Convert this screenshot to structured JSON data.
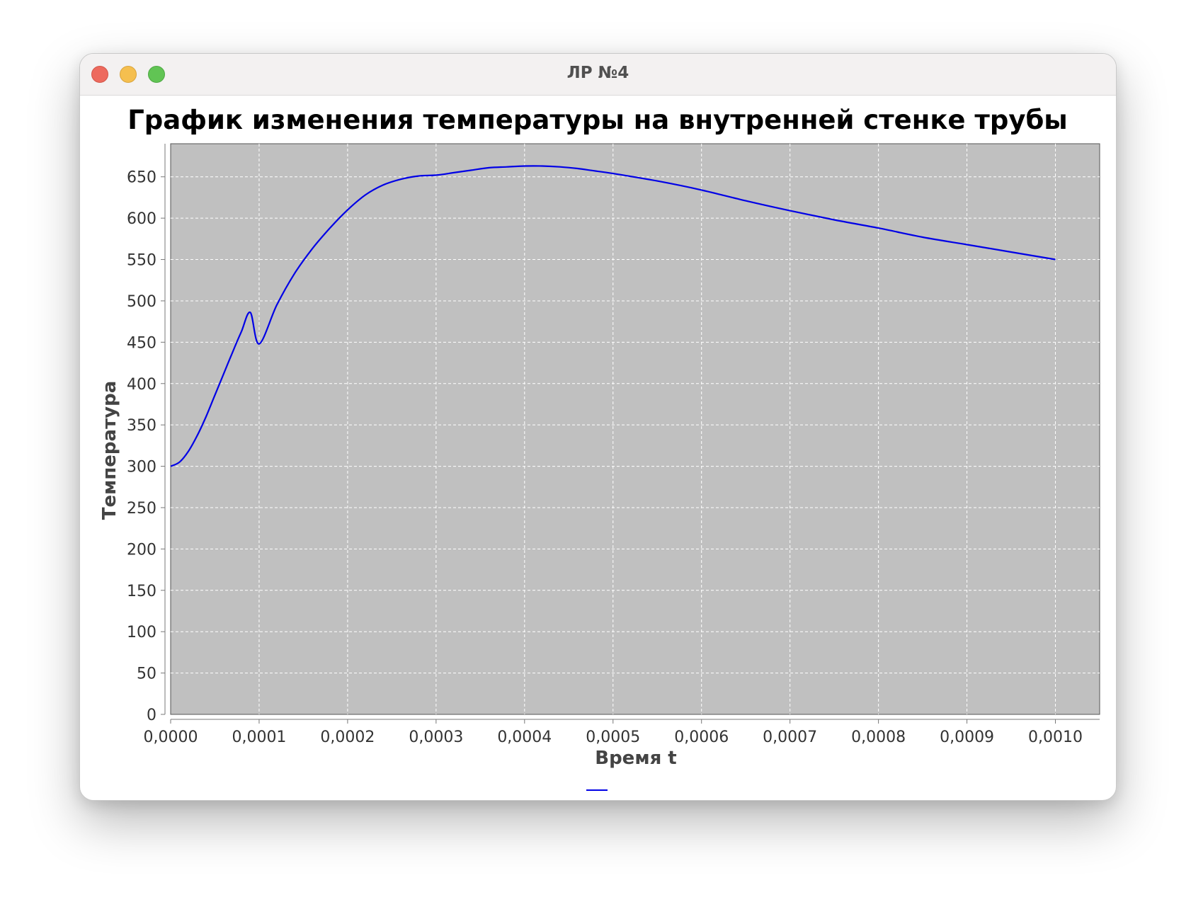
{
  "window": {
    "title": "ЛР №4"
  },
  "chart_data": {
    "type": "line",
    "title": "График изменения температуры на внутренней стенке трубы",
    "xlabel": "Время t",
    "ylabel": "Температура",
    "xlim": [
      0,
      0.00105
    ],
    "ylim": [
      0,
      690
    ],
    "x_ticks": [
      "0,0000",
      "0,0001",
      "0,0002",
      "0,0003",
      "0,0004",
      "0,0005",
      "0,0006",
      "0,0007",
      "0,0008",
      "0,0009",
      "0,0010"
    ],
    "y_ticks": [
      "0",
      "50",
      "100",
      "150",
      "200",
      "250",
      "300",
      "350",
      "400",
      "450",
      "500",
      "550",
      "600",
      "650"
    ],
    "grid": true,
    "legend": "bottom-center",
    "plot_background": "#c0c0c0",
    "series": [
      {
        "color": "#0000e6",
        "x": [
          0,
          1e-05,
          2e-05,
          3e-05,
          4e-05,
          5e-05,
          6e-05,
          7e-05,
          8e-05,
          9e-05,
          0.0001,
          0.00012,
          0.00014,
          0.00016,
          0.00018,
          0.0002,
          0.00022,
          0.00024,
          0.00026,
          0.00028,
          0.0003,
          0.00032,
          0.00034,
          0.00036,
          0.00038,
          0.0004,
          0.00042,
          0.00044,
          0.00046,
          0.00048,
          0.0005,
          0.00055,
          0.0006,
          0.00065,
          0.0007,
          0.00075,
          0.0008,
          0.00085,
          0.0009,
          0.00095,
          0.001
        ],
        "y": [
          300,
          305,
          318,
          337,
          360,
          386,
          412,
          438,
          463,
          486,
          448,
          495,
          533,
          563,
          588,
          610,
          628,
          640,
          647,
          651,
          652,
          655,
          658,
          661,
          662,
          663,
          663,
          662,
          660,
          657,
          654,
          645,
          634,
          621,
          609,
          598,
          588,
          577,
          568,
          559,
          550
        ]
      }
    ]
  }
}
